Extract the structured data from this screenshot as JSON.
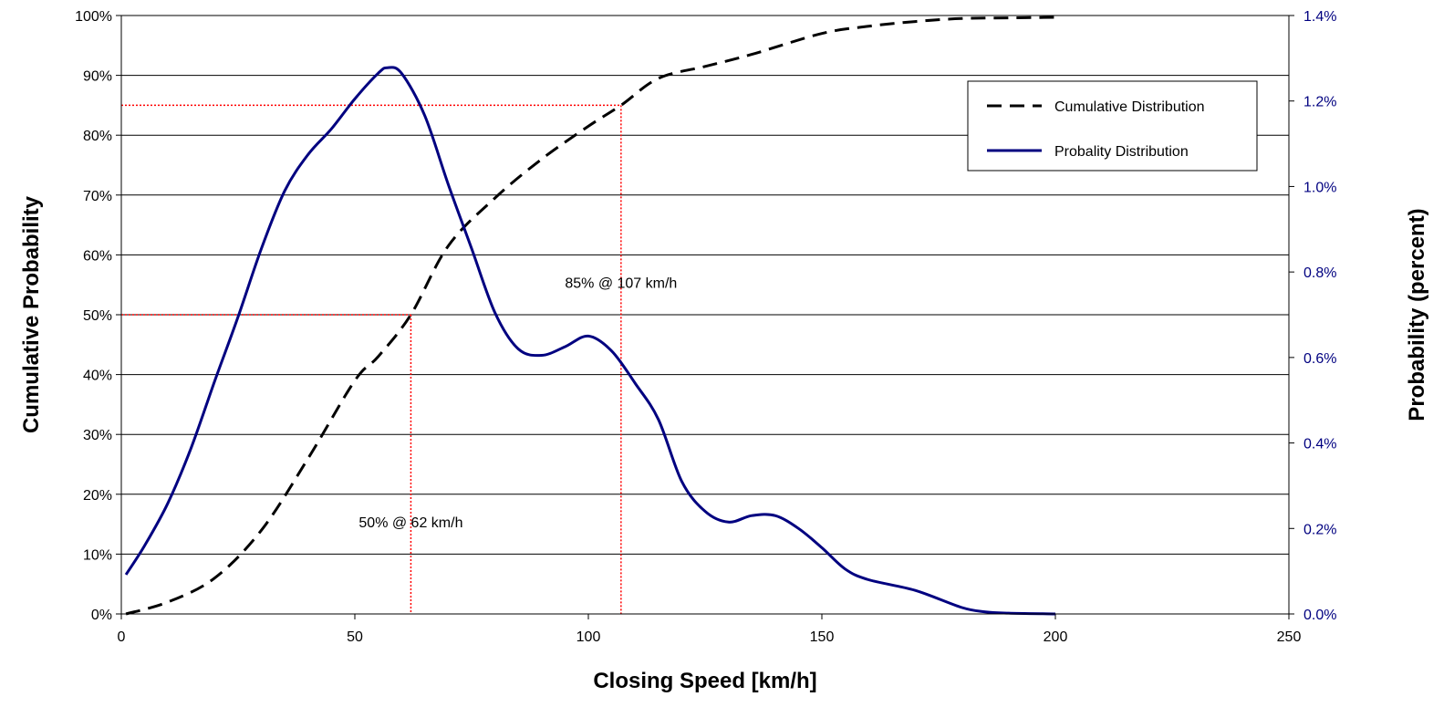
{
  "chart_data": {
    "type": "line",
    "xlabel": "Closing Speed [km/h]",
    "ylabel": "Cumulative Probability",
    "y2label": "Probability (percent)",
    "xlim": [
      0,
      250
    ],
    "ylim": [
      0,
      1
    ],
    "y2lim": [
      0,
      1.4
    ],
    "x_ticks": [
      0,
      50,
      100,
      150,
      200,
      250
    ],
    "x_tick_labels": [
      "0",
      "50",
      "100",
      "150",
      "200",
      "250"
    ],
    "y_ticks": [
      0,
      0.1,
      0.2,
      0.3,
      0.4,
      0.5,
      0.6,
      0.7,
      0.8,
      0.9,
      1.0
    ],
    "y_tick_labels": [
      "0%",
      "10%",
      "20%",
      "30%",
      "40%",
      "50%",
      "60%",
      "70%",
      "80%",
      "90%",
      "100%"
    ],
    "y2_ticks": [
      0,
      0.2,
      0.4,
      0.6,
      0.8,
      1.0,
      1.2,
      1.4
    ],
    "y2_tick_labels": [
      "0.0%",
      "0.2%",
      "0.4%",
      "0.6%",
      "0.8%",
      "1.0%",
      "1.2%",
      "1.4%"
    ],
    "grid": "horizontal",
    "legend_position": "top-right",
    "series": [
      {
        "name": "Cumulative Distribution",
        "axis": "left",
        "color": "#000000",
        "style": "dashed",
        "x": [
          1,
          10,
          20,
          30,
          40,
          50,
          55,
          62,
          70,
          80,
          90,
          100,
          107,
          115,
          125,
          135,
          150,
          160,
          170,
          180,
          190,
          200
        ],
        "y": [
          0.0,
          0.02,
          0.06,
          0.14,
          0.26,
          0.39,
          0.43,
          0.5,
          0.615,
          0.695,
          0.76,
          0.815,
          0.85,
          0.895,
          0.915,
          0.935,
          0.97,
          0.982,
          0.99,
          0.995,
          0.996,
          0.997
        ]
      },
      {
        "name": "Probality Distribution",
        "axis": "right",
        "color": "#000080",
        "style": "solid",
        "x": [
          1,
          5,
          10,
          15,
          20,
          25,
          30,
          35,
          40,
          45,
          50,
          55,
          57,
          60,
          65,
          70,
          75,
          80,
          85,
          90,
          95,
          100,
          105,
          110,
          115,
          120,
          125,
          130,
          135,
          140,
          145,
          150,
          155,
          160,
          170,
          180,
          185,
          190,
          200
        ],
        "y": [
          0.092,
          0.16,
          0.26,
          0.39,
          0.545,
          0.695,
          0.855,
          0.99,
          1.075,
          1.135,
          1.205,
          1.265,
          1.278,
          1.265,
          1.165,
          1.005,
          0.855,
          0.705,
          0.62,
          0.605,
          0.625,
          0.65,
          0.615,
          0.54,
          0.455,
          0.31,
          0.24,
          0.215,
          0.23,
          0.23,
          0.2,
          0.155,
          0.105,
          0.08,
          0.055,
          0.015,
          0.005,
          0.002,
          0.0
        ]
      }
    ],
    "reference_lines": [
      {
        "x": 62,
        "y": 0.5,
        "label": "50% @ 62 km/h",
        "color": "#ff0000"
      },
      {
        "x": 107,
        "y": 0.85,
        "label": "85% @ 107 km/h",
        "color": "#ff0000"
      }
    ]
  }
}
